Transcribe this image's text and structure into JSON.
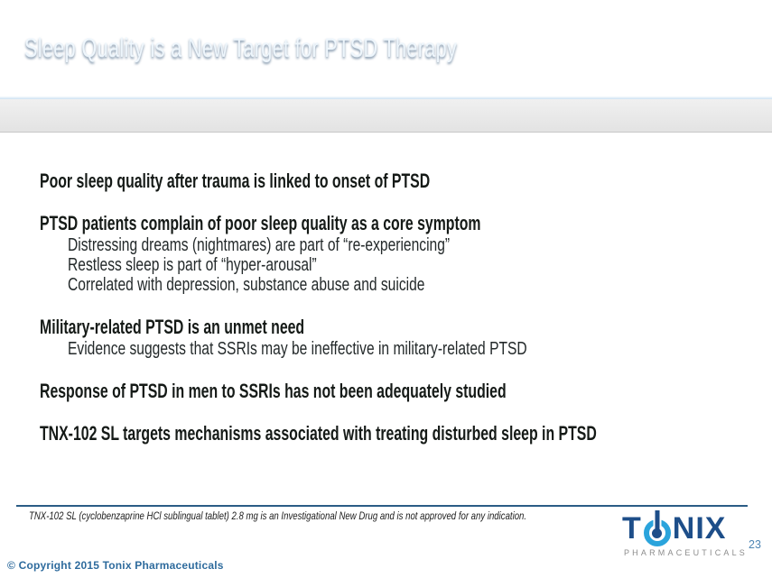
{
  "header": {
    "title": "Sleep Quality is a New Target for PTSD Therapy"
  },
  "body": {
    "sections": [
      {
        "heading": "Poor sleep quality after trauma is linked to onset of PTSD",
        "subs": []
      },
      {
        "heading": "PTSD patients complain of poor sleep quality as a core symptom",
        "subs": [
          "Distressing dreams (nightmares) are part of “re-experiencing”",
          "Restless sleep is part of “hyper-arousal”",
          "Correlated with depression, substance abuse and suicide"
        ]
      },
      {
        "heading": "Military-related PTSD is an unmet need",
        "subs": [
          "Evidence suggests that SSRIs may be ineffective in military-related PTSD"
        ]
      },
      {
        "heading": "Response of PTSD in men to SSRIs has not been adequately studied",
        "subs": []
      },
      {
        "heading": "TNX-102 SL targets mechanisms associated with treating disturbed sleep in PTSD",
        "subs": []
      }
    ]
  },
  "footer": {
    "footnote": "TNX-102 SL (cyclobenzaprine HCl sublingual tablet) 2.8 mg is an Investigational New Drug and is not approved for any indication.",
    "logo": {
      "prefix": "T",
      "suffix": "NIX",
      "subtext": "PHARMACEUTICALS"
    },
    "page_number": "23",
    "copyright": "© Copyright 2015 Tonix Pharmaceuticals"
  },
  "colors": {
    "header_blue_bright": "#27a0dc",
    "header_blue_dark": "#1a6da9",
    "logo_navy": "#1d4e89",
    "logo_light_blue": "#2aa4dc",
    "pharmaceuticals_gray": "#8c8c8c",
    "footnote_rule_blue": "#2b5c85",
    "copyright_blue": "#2e6b9d",
    "page_number_blue": "#4e86b4"
  }
}
